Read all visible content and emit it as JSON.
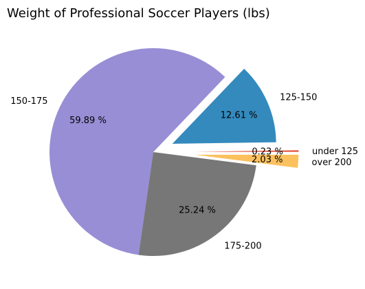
{
  "chart_data": {
    "type": "pie",
    "title": "Weight of Professional Soccer Players (lbs)",
    "slices": [
      {
        "label": "under 125",
        "value": 0.23,
        "pct_label": "0.23 %",
        "color": "#e24a33",
        "explode": 0.4
      },
      {
        "label": "125-150",
        "value": 12.61,
        "pct_label": "12.61 %",
        "color": "#348abd",
        "explode": 0.2
      },
      {
        "label": "150-175",
        "value": 59.89,
        "pct_label": "59.89 %",
        "color": "#988ed5",
        "explode": 0
      },
      {
        "label": "175-200",
        "value": 25.24,
        "pct_label": "25.24 %",
        "color": "#777777",
        "explode": 0
      },
      {
        "label": "over 200",
        "value": 2.03,
        "pct_label": "2.03 %",
        "color": "#fbc15e",
        "explode": 0.4
      }
    ]
  }
}
